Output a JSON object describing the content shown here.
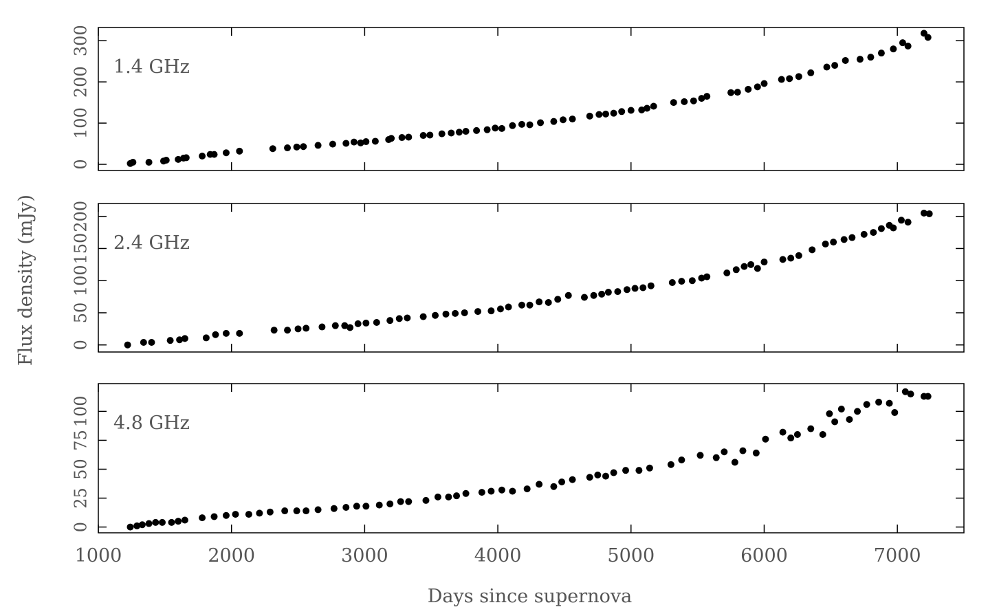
{
  "chart_data": [
    {
      "type": "scatter",
      "annotation": "1.4 GHz",
      "color": "#000000",
      "x": [
        1240,
        1260,
        1380,
        1490,
        1510,
        1600,
        1640,
        1660,
        1780,
        1840,
        1870,
        1960,
        2060,
        2310,
        2420,
        2490,
        2540,
        2650,
        2760,
        2860,
        2920,
        2970,
        3010,
        3080,
        3180,
        3200,
        3280,
        3330,
        3440,
        3490,
        3580,
        3650,
        3710,
        3760,
        3840,
        3920,
        3980,
        4030,
        4110,
        4180,
        4240,
        4320,
        4420,
        4490,
        4560,
        4690,
        4760,
        4810,
        4870,
        4930,
        5000,
        5080,
        5120,
        5170,
        5320,
        5400,
        5470,
        5530,
        5570,
        5750,
        5800,
        5880,
        5950,
        6000,
        6130,
        6190,
        6260,
        6350,
        6470,
        6530,
        6610,
        6720,
        6800,
        6880,
        6970,
        7040,
        7080,
        7200,
        7230
      ],
      "y": [
        2,
        5,
        5,
        8,
        10,
        12,
        15,
        16,
        20,
        24,
        24,
        28,
        32,
        38,
        40,
        42,
        43,
        46,
        49,
        51,
        54,
        52,
        55,
        56,
        60,
        63,
        65,
        66,
        70,
        71,
        74,
        76,
        78,
        80,
        82,
        84,
        88,
        87,
        94,
        97,
        96,
        101,
        104,
        108,
        110,
        117,
        121,
        122,
        124,
        128,
        131,
        132,
        136,
        141,
        150,
        152,
        154,
        160,
        165,
        174,
        175,
        182,
        188,
        196,
        206,
        208,
        213,
        222,
        236,
        240,
        252,
        255,
        260,
        270,
        280,
        295,
        287,
        318,
        308
      ],
      "xlim": [
        1000,
        7500
      ],
      "ylim": [
        -15,
        332
      ],
      "xticks": [
        1000,
        2000,
        3000,
        4000,
        5000,
        6000,
        7000
      ],
      "yticks": [
        0,
        100,
        200,
        300
      ]
    },
    {
      "type": "scatter",
      "annotation": "2.4 GHz",
      "color": "#000000",
      "ylabel": "Flux density (mJy)",
      "x": [
        1220,
        1340,
        1400,
        1540,
        1610,
        1650,
        1810,
        1880,
        1960,
        2060,
        2320,
        2420,
        2500,
        2560,
        2680,
        2780,
        2850,
        2890,
        2950,
        3010,
        3090,
        3190,
        3260,
        3320,
        3440,
        3530,
        3610,
        3680,
        3750,
        3850,
        3950,
        4020,
        4080,
        4180,
        4240,
        4310,
        4380,
        4450,
        4530,
        4650,
        4720,
        4780,
        4830,
        4900,
        4970,
        5030,
        5090,
        5150,
        5310,
        5380,
        5460,
        5530,
        5570,
        5720,
        5790,
        5850,
        5900,
        5950,
        6000,
        6140,
        6200,
        6260,
        6360,
        6460,
        6520,
        6600,
        6660,
        6750,
        6820,
        6880,
        6940,
        6970,
        7030,
        7080,
        7200,
        7240
      ],
      "y": [
        0,
        4,
        4,
        7,
        8,
        10,
        11,
        16,
        18,
        18,
        23,
        23,
        25,
        26,
        28,
        30,
        30,
        27,
        33,
        34,
        35,
        38,
        41,
        42,
        44,
        46,
        48,
        49,
        50,
        52,
        53,
        56,
        59,
        62,
        62,
        67,
        66,
        71,
        77,
        74,
        77,
        79,
        82,
        83,
        86,
        88,
        89,
        92,
        97,
        99,
        100,
        104,
        106,
        112,
        117,
        122,
        125,
        119,
        129,
        133,
        135,
        139,
        148,
        157,
        160,
        164,
        167,
        172,
        175,
        181,
        186,
        182,
        194,
        191,
        205,
        204
      ],
      "xlim": [
        1000,
        7500
      ],
      "ylim": [
        -11,
        220
      ],
      "xticks": [
        1000,
        2000,
        3000,
        4000,
        5000,
        6000,
        7000
      ],
      "yticks": [
        0,
        50,
        100,
        150,
        200
      ]
    },
    {
      "type": "scatter",
      "annotation": "4.8 GHz",
      "color": "#000000",
      "xlabel": "Days since supernova",
      "x": [
        1240,
        1290,
        1330,
        1380,
        1430,
        1480,
        1550,
        1600,
        1650,
        1780,
        1870,
        1960,
        2030,
        2130,
        2210,
        2290,
        2400,
        2490,
        2560,
        2650,
        2770,
        2860,
        2940,
        3010,
        3110,
        3190,
        3270,
        3330,
        3460,
        3550,
        3630,
        3690,
        3760,
        3880,
        3950,
        4030,
        4110,
        4220,
        4310,
        4420,
        4480,
        4560,
        4690,
        4750,
        4810,
        4870,
        4960,
        5060,
        5140,
        5300,
        5380,
        5520,
        5640,
        5700,
        5780,
        5840,
        5940,
        6010,
        6140,
        6200,
        6250,
        6350,
        6440,
        6490,
        6530,
        6580,
        6640,
        6700,
        6770,
        6860,
        6940,
        6980,
        7060,
        7100,
        7200,
        7230
      ],
      "y": [
        0,
        1,
        2,
        3,
        4,
        4,
        4,
        5,
        6,
        8,
        9,
        10,
        11,
        11,
        12,
        13,
        14,
        14,
        14,
        15,
        16,
        17,
        18,
        18,
        19,
        20,
        22,
        22,
        23,
        26,
        26,
        27,
        29,
        30,
        31,
        32,
        31,
        33,
        37,
        35,
        39,
        41,
        43,
        45,
        44,
        47,
        49,
        49,
        51,
        54,
        58,
        62,
        60,
        65,
        56,
        66,
        64,
        76,
        82,
        77,
        80,
        85,
        80,
        98,
        91,
        102,
        93,
        100,
        106,
        108,
        107,
        99,
        117,
        115,
        113,
        113
      ],
      "xlim": [
        1000,
        7500
      ],
      "ylim": [
        -5,
        124
      ],
      "xticks": [
        1000,
        2000,
        3000,
        4000,
        5000,
        6000,
        7000
      ],
      "yticks": [
        0,
        25,
        50,
        75,
        100
      ]
    }
  ]
}
